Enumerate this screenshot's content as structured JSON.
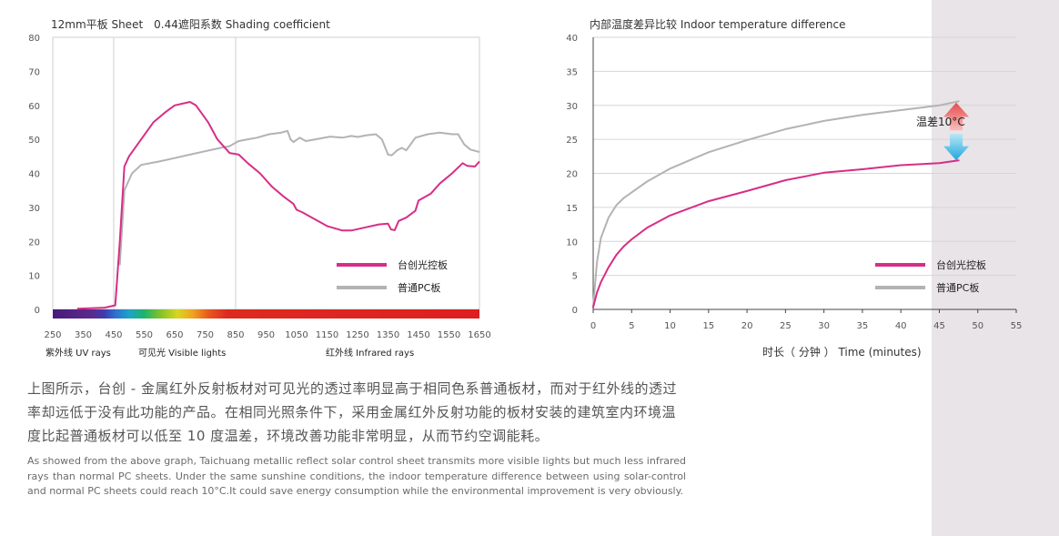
{
  "chart_data": [
    {
      "type": "line",
      "title": "12mm平板 Sheet　0.44遮阳系数 Shading coefficient",
      "x_ticks": [
        "250",
        "350",
        "450",
        "550",
        "650",
        "750",
        "850",
        "950",
        "1050",
        "1150",
        "1250",
        "1350",
        "1450",
        "1550",
        "1650"
      ],
      "y_ticks": [
        0,
        10,
        20,
        30,
        40,
        50,
        60,
        70,
        80
      ],
      "xlim": [
        250,
        1650
      ],
      "ylim": [
        0,
        80
      ],
      "grid": "vertical gridlines at 450 and 850",
      "bands": [
        {
          "label": "紫外线 UV rays",
          "from": 250,
          "to": 450
        },
        {
          "label": "可见光 Visible lights",
          "from": 450,
          "to": 850
        },
        {
          "label": "红外线 Infrared rays",
          "from": 850,
          "to": 1650
        }
      ],
      "legend_position": "lower-right",
      "series": [
        {
          "name": "台创光控板",
          "color": "#d62e87",
          "points": [
            [
              330,
              0.2
            ],
            [
              420,
              0.5
            ],
            [
              455,
              1.2
            ],
            [
              470,
              20
            ],
            [
              485,
              42
            ],
            [
              500,
              45
            ],
            [
              540,
              50
            ],
            [
              580,
              55
            ],
            [
              620,
              58
            ],
            [
              650,
              60
            ],
            [
              700,
              61
            ],
            [
              720,
              60
            ],
            [
              760,
              55
            ],
            [
              790,
              50
            ],
            [
              810,
              48
            ],
            [
              830,
              46
            ],
            [
              860,
              45.5
            ],
            [
              890,
              43
            ],
            [
              930,
              40
            ],
            [
              970,
              36
            ],
            [
              1010,
              33
            ],
            [
              1040,
              31
            ],
            [
              1050,
              29.3
            ],
            [
              1070,
              28.5
            ],
            [
              1100,
              27
            ],
            [
              1150,
              24.5
            ],
            [
              1200,
              23.2
            ],
            [
              1230,
              23.2
            ],
            [
              1270,
              24
            ],
            [
              1320,
              25
            ],
            [
              1350,
              25.2
            ],
            [
              1360,
              23.5
            ],
            [
              1372,
              23.3
            ],
            [
              1385,
              26
            ],
            [
              1410,
              27
            ],
            [
              1440,
              29
            ],
            [
              1450,
              32
            ],
            [
              1490,
              34
            ],
            [
              1520,
              37
            ],
            [
              1560,
              40
            ],
            [
              1595,
              43
            ],
            [
              1610,
              42.2
            ],
            [
              1635,
              42
            ],
            [
              1650,
              43.5
            ]
          ]
        },
        {
          "name": "普通PC板",
          "color": "#b3b3b3",
          "points": [
            [
              470,
              13
            ],
            [
              485,
              35
            ],
            [
              510,
              40
            ],
            [
              540,
              42.5
            ],
            [
              600,
              43.5
            ],
            [
              650,
              44.5
            ],
            [
              700,
              45.5
            ],
            [
              750,
              46.5
            ],
            [
              800,
              47.5
            ],
            [
              830,
              48
            ],
            [
              860,
              49.5
            ],
            [
              890,
              50
            ],
            [
              920,
              50.5
            ],
            [
              960,
              51.5
            ],
            [
              1000,
              52
            ],
            [
              1020,
              52.5
            ],
            [
              1030,
              50
            ],
            [
              1040,
              49.2
            ],
            [
              1060,
              50.5
            ],
            [
              1080,
              49.5
            ],
            [
              1100,
              49.8
            ],
            [
              1130,
              50.3
            ],
            [
              1160,
              50.8
            ],
            [
              1200,
              50.5
            ],
            [
              1230,
              51
            ],
            [
              1250,
              50.7
            ],
            [
              1280,
              51.2
            ],
            [
              1310,
              51.5
            ],
            [
              1330,
              50
            ],
            [
              1350,
              45.5
            ],
            [
              1362,
              45.3
            ],
            [
              1380,
              46.8
            ],
            [
              1395,
              47.5
            ],
            [
              1410,
              46.8
            ],
            [
              1440,
              50.5
            ],
            [
              1480,
              51.5
            ],
            [
              1520,
              52
            ],
            [
              1560,
              51.5
            ],
            [
              1580,
              51.5
            ],
            [
              1600,
              48.5
            ],
            [
              1620,
              47
            ],
            [
              1640,
              46.5
            ],
            [
              1650,
              46.3
            ]
          ]
        }
      ]
    },
    {
      "type": "line",
      "title": "内部温度差异比较 Indoor temperature difference",
      "xlabel": "时长（ 分钟 ）  Time (minutes)",
      "x_ticks": [
        0,
        5,
        10,
        15,
        20,
        25,
        30,
        35,
        40,
        45,
        50,
        55
      ],
      "y_ticks": [
        0,
        5,
        10,
        15,
        20,
        25,
        30,
        35,
        40
      ],
      "xlim": [
        0,
        55
      ],
      "ylim": [
        0,
        40
      ],
      "legend_position": "lower-right",
      "annotation": "温差10°C",
      "series": [
        {
          "name": "普通PC板",
          "color": "#b3b3b3",
          "points": [
            [
              0,
              0.5
            ],
            [
              0.5,
              7
            ],
            [
              1,
              10.5
            ],
            [
              2,
              13.5
            ],
            [
              3,
              15.3
            ],
            [
              4,
              16.4
            ],
            [
              5,
              17.2
            ],
            [
              7,
              18.8
            ],
            [
              10,
              20.7
            ],
            [
              15,
              23.1
            ],
            [
              20,
              24.9
            ],
            [
              25,
              26.5
            ],
            [
              30,
              27.7
            ],
            [
              35,
              28.6
            ],
            [
              40,
              29.3
            ],
            [
              45,
              30
            ],
            [
              47.5,
              30.6
            ]
          ]
        },
        {
          "name": "台创光控板",
          "color": "#d62e87",
          "points": [
            [
              0,
              0.3
            ],
            [
              0.5,
              2.5
            ],
            [
              1,
              4
            ],
            [
              2,
              6.2
            ],
            [
              3,
              8
            ],
            [
              4,
              9.3
            ],
            [
              5,
              10.3
            ],
            [
              7,
              12
            ],
            [
              10,
              13.8
            ],
            [
              15,
              15.9
            ],
            [
              20,
              17.4
            ],
            [
              25,
              19
            ],
            [
              30,
              20.1
            ],
            [
              35,
              20.6
            ],
            [
              40,
              21.2
            ],
            [
              45,
              21.5
            ],
            [
              47.5,
              21.9
            ]
          ]
        }
      ]
    }
  ],
  "body": {
    "paragraph_cn": "上图所示，台创 - 金属红外反射板材对可见光的透过率明显高于相同色系普通板材，而对于红外线的透过率却远低于没有此功能的产品。在相同光照条件下，采用金属红外反射功能的板材安装的建筑室内环境温度比起普通板材可以低至 10 度温差，环境改善功能非常明显，从而节约空调能耗。",
    "paragraph_en": "As showed from the above graph, Taichuang metallic reflect solar control sheet transmits more visible lights but much less infrared rays than normal PC sheets. Under the same sunshine conditions, the indoor temperature difference between using solar-control and normal PC sheets could reach 10°C.It could save energy consumption while the environmental improvement is very obviously."
  }
}
